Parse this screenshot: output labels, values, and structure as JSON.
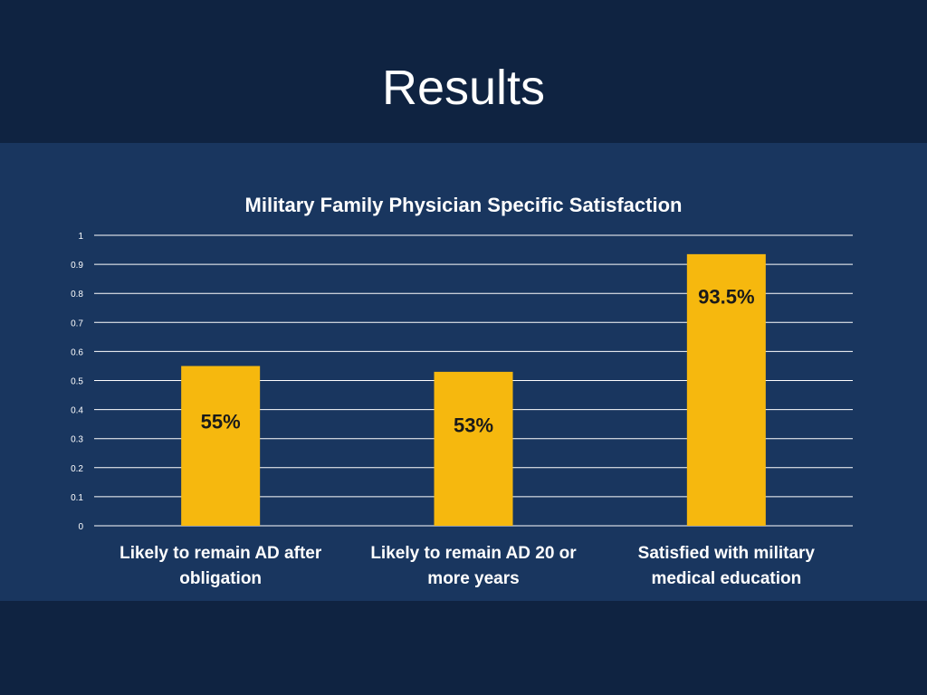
{
  "slide": {
    "title": "Results"
  },
  "colors": {
    "background": "#0f2341",
    "panel": "#19365f",
    "bar": "#f6b80e",
    "text": "#ffffff",
    "data_label": "#1a1a1a"
  },
  "chart_data": {
    "type": "bar",
    "title": "Military Family Physician Specific Satisfaction",
    "categories": [
      [
        "Likely to remain AD after",
        "obligation"
      ],
      [
        "Likely to remain AD 20 or",
        "more years"
      ],
      [
        "Satisfied with military",
        "medical education"
      ]
    ],
    "values": [
      0.55,
      0.53,
      0.935
    ],
    "data_labels": [
      "55%",
      "53%",
      "93.5%"
    ],
    "yticks": [
      "0",
      "0.1",
      "0.2",
      "0.3",
      "0.4",
      "0.5",
      "0.6",
      "0.7",
      "0.8",
      "0.9",
      "1"
    ],
    "ylim": [
      0,
      1
    ],
    "grid": true,
    "xlabel": "",
    "ylabel": ""
  }
}
